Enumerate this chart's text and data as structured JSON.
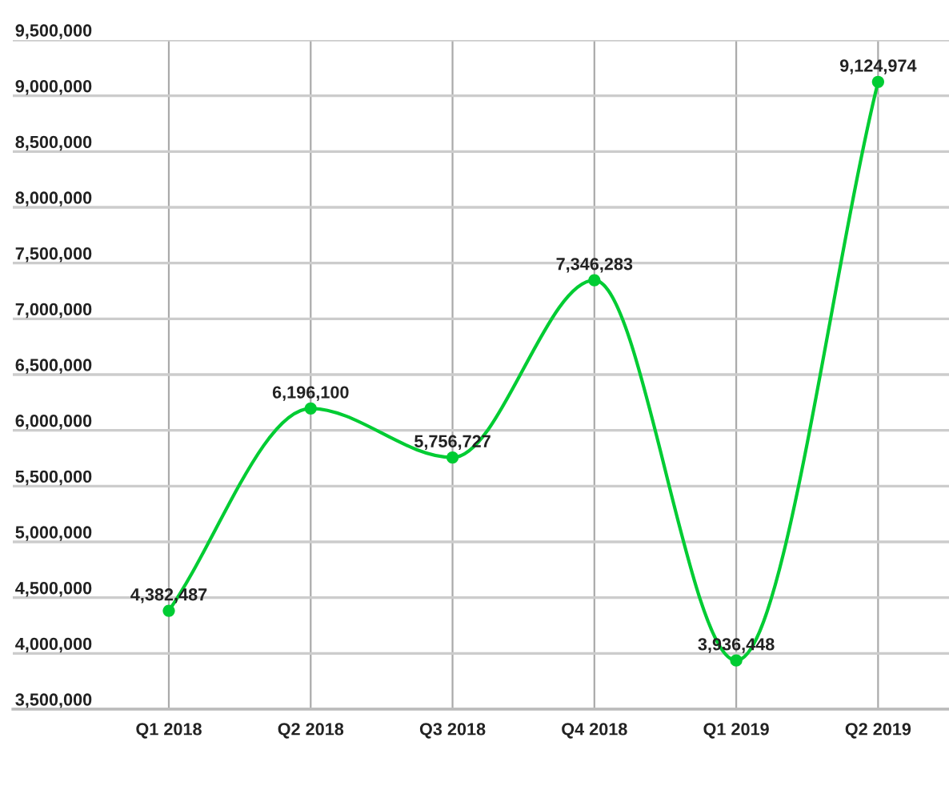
{
  "chart_data": {
    "type": "line",
    "categories": [
      "Q1 2018",
      "Q2 2018",
      "Q3 2018",
      "Q4 2018",
      "Q1 2019",
      "Q2 2019"
    ],
    "series": [
      {
        "color": "#00cc33",
        "values": [
          4382487,
          6196100,
          5756727,
          7346283,
          3936448,
          9124974
        ],
        "value_labels": [
          "4,382,487",
          "6,196,100",
          "5,756,727",
          "7,346,283",
          "3,936,448",
          "9,124,974"
        ]
      }
    ],
    "ylim": [
      3500000,
      9500000
    ],
    "yticks": [
      {
        "value": 3500000,
        "label": "3,500,000"
      },
      {
        "value": 4000000,
        "label": "4,000,000"
      },
      {
        "value": 4500000,
        "label": "4,500,000"
      },
      {
        "value": 5000000,
        "label": "5,000,000"
      },
      {
        "value": 5500000,
        "label": "5,500,000"
      },
      {
        "value": 6000000,
        "label": "6,000,000"
      },
      {
        "value": 6500000,
        "label": "6,500,000"
      },
      {
        "value": 7000000,
        "label": "7,000,000"
      },
      {
        "value": 7500000,
        "label": "7,500,000"
      },
      {
        "value": 8000000,
        "label": "8,000,000"
      },
      {
        "value": 8500000,
        "label": "8,500,000"
      },
      {
        "value": 9000000,
        "label": "9,000,000"
      },
      {
        "value": 9500000,
        "label": "9,500,000"
      }
    ],
    "grid": true,
    "marker": "circle",
    "line_style": "solid"
  }
}
